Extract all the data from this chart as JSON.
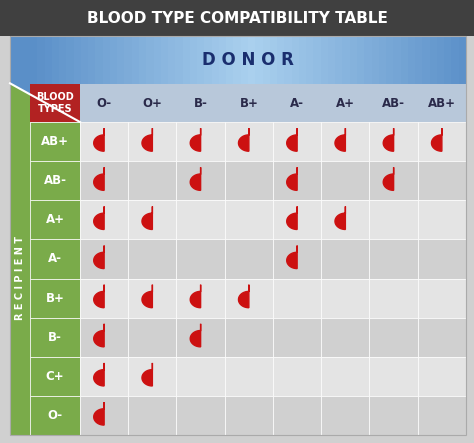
{
  "title": "BLOOD TYPE COMPATIBILITY TABLE",
  "donor_label": "D O N O R",
  "recipient_label": "R E C I P I E N T",
  "blood_types_label": "BLOOD\nTYPES",
  "donor_types": [
    "O-",
    "O+",
    "B-",
    "B+",
    "A-",
    "A+",
    "AB-",
    "AB+"
  ],
  "recipient_types": [
    "AB+",
    "AB-",
    "A+",
    "A-",
    "B+",
    "B-",
    "C+",
    "O-"
  ],
  "compatibility": [
    [
      1,
      1,
      1,
      1,
      1,
      1,
      1,
      1
    ],
    [
      1,
      0,
      1,
      0,
      1,
      0,
      1,
      0
    ],
    [
      1,
      1,
      0,
      0,
      1,
      1,
      0,
      0
    ],
    [
      1,
      0,
      0,
      0,
      1,
      0,
      0,
      0
    ],
    [
      1,
      1,
      1,
      1,
      0,
      0,
      0,
      0
    ],
    [
      1,
      0,
      1,
      0,
      0,
      0,
      0,
      0
    ],
    [
      1,
      1,
      0,
      0,
      0,
      0,
      0,
      0
    ],
    [
      1,
      0,
      0,
      0,
      0,
      0,
      0,
      0
    ]
  ],
  "bg_color": "#d0d0d0",
  "title_bg": "#404040",
  "title_color": "#ffffff",
  "donor_bg_left": "#5a8fc8",
  "donor_bg_right": "#5a8fc8",
  "donor_bg_center": "#aad0ee",
  "donor_header_text": "#1a2e6e",
  "green_sidebar_color": "#7aab4a",
  "red_header_color": "#b22222",
  "col_header_bg": "#b8c8da",
  "col_header_text": "#2a2a4a",
  "cell_color_a": "#e4e4e4",
  "cell_color_b": "#d0d0d0",
  "drop_color": "#cc1111",
  "title_fontsize": 11,
  "donor_fontsize": 12,
  "col_header_fontsize": 8.5,
  "row_label_fontsize": 8.5,
  "recipient_fontsize": 7,
  "blood_types_fontsize": 7,
  "drop_fontsize": 15
}
